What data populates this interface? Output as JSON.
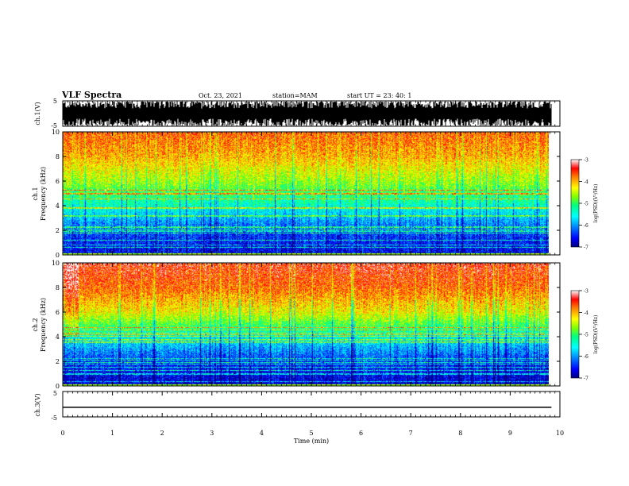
{
  "header": {
    "title": "VLF Spectra",
    "date": "Oct. 23, 2021",
    "station": "station=MAM",
    "start": "start  UT  =   23: 40: 1"
  },
  "chart_data": [
    {
      "type": "line",
      "name": "ch1-waveform",
      "ylabel": "ch.1(V)",
      "ylim": [
        -5,
        5
      ],
      "yticks": [
        "5",
        "-5"
      ],
      "x_range_min": [
        0,
        9.83
      ],
      "description_values": {
        "amplitude_min": -5,
        "amplitude_max": 5
      }
    },
    {
      "type": "heatmap",
      "name": "ch1-spectrogram",
      "ylabel": "ch.1\nFrequency (kHz)",
      "ylabel_lines": [
        "ch.1",
        "Frequency (kHz)"
      ],
      "ylim": [
        0,
        10
      ],
      "yticks": [
        "0",
        "2",
        "4",
        "6",
        "8",
        "10"
      ],
      "x_range_min": [
        0,
        9.83
      ],
      "colorbar": {
        "label": "log(PSD)(V²/Hz)",
        "range": [
          -7,
          -3
        ],
        "ticks": [
          "-3",
          "-4",
          "-5",
          "-6",
          "-7"
        ]
      },
      "profile_log_psd_by_khz": {
        "0.5": -6.6,
        "2": -6.3,
        "4": -5.4,
        "6": -4.6,
        "8": -4.0,
        "10": -3.7
      }
    },
    {
      "type": "heatmap",
      "name": "ch2-spectrogram",
      "ylabel": "ch.2\nFrequency (kHz)",
      "ylabel_lines": [
        "ch.2",
        "Frequency (kHz)"
      ],
      "ylim": [
        0,
        10
      ],
      "yticks": [
        "0",
        "2",
        "4",
        "6",
        "8",
        "10"
      ],
      "x_range_min": [
        0,
        9.83
      ],
      "colorbar": {
        "label": "log(PSD)(V²/Hz)",
        "range": [
          -7,
          -3
        ],
        "ticks": [
          "-3",
          "-4",
          "-5",
          "-6",
          "-7"
        ]
      },
      "profile_log_psd_by_khz": {
        "0.5": -6.7,
        "2": -6.4,
        "4": -5.5,
        "6": -4.3,
        "8": -3.7,
        "10": -3.4
      }
    },
    {
      "type": "line",
      "name": "ch3-waveform",
      "ylabel": "ch.3(V)",
      "ylim": [
        -5,
        5
      ],
      "yticks": [
        "5",
        "-5"
      ],
      "series": [
        {
          "x": [
            0,
            9.83
          ],
          "values": [
            -1.2,
            -1.2
          ]
        }
      ]
    }
  ],
  "xaxis": {
    "label": "Time (min)",
    "ticks": [
      "0",
      "1",
      "2",
      "3",
      "4",
      "5",
      "6",
      "7",
      "8",
      "9",
      "10"
    ],
    "range": [
      0,
      10
    ]
  },
  "colors": {
    "ink": "#000000",
    "colormap": [
      "#000080",
      "#0000ff",
      "#0080ff",
      "#00ffff",
      "#00ff80",
      "#80ff00",
      "#ffff00",
      "#ff8000",
      "#ff0000",
      "#ffffff"
    ]
  }
}
